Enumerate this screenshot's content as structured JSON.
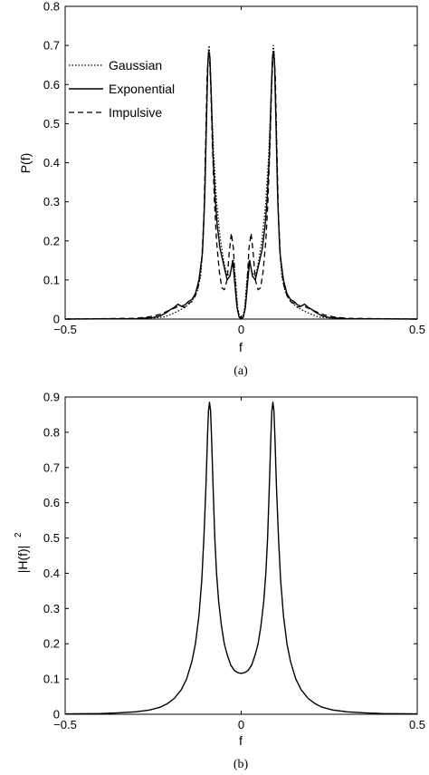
{
  "chart_data": [
    {
      "type": "line",
      "panel_label": "(a)",
      "xlabel": "f",
      "ylabel": "P(f)",
      "xlim": [
        -0.5,
        0.5
      ],
      "ylim": [
        0,
        0.8
      ],
      "xticks": [
        "-0.5",
        "0",
        "0.5"
      ],
      "xtick_values": [
        -0.5,
        0,
        0.5
      ],
      "yticks": [
        "0",
        "0.1",
        "0.2",
        "0.3",
        "0.4",
        "0.5",
        "0.6",
        "0.7",
        "0.8"
      ],
      "ytick_values": [
        0,
        0.1,
        0.2,
        0.3,
        0.4,
        0.5,
        0.6,
        0.7,
        0.8
      ],
      "legend_position": "top-left",
      "series": [
        {
          "name": "Gaussian",
          "style": "dotted",
          "points": [
            [
              -0.5,
              0
            ],
            [
              -0.3,
              0.001
            ],
            [
              -0.25,
              0.003
            ],
            [
              -0.22,
              0.005
            ],
            [
              -0.2,
              0.012
            ],
            [
              -0.18,
              0.02
            ],
            [
              -0.16,
              0.03
            ],
            [
              -0.14,
              0.045
            ],
            [
              -0.125,
              0.07
            ],
            [
              -0.115,
              0.11
            ],
            [
              -0.108,
              0.2
            ],
            [
              -0.102,
              0.35
            ],
            [
              -0.097,
              0.55
            ],
            [
              -0.094,
              0.68
            ],
            [
              -0.091,
              0.7
            ],
            [
              -0.088,
              0.66
            ],
            [
              -0.084,
              0.55
            ],
            [
              -0.078,
              0.42
            ],
            [
              -0.07,
              0.3
            ],
            [
              -0.06,
              0.21
            ],
            [
              -0.05,
              0.15
            ],
            [
              -0.04,
              0.11
            ],
            [
              -0.03,
              0.12
            ],
            [
              -0.022,
              0.15
            ],
            [
              -0.016,
              0.1
            ],
            [
              -0.01,
              0.03
            ],
            [
              -0.004,
              0.005
            ],
            [
              0,
              0.0
            ],
            [
              0.004,
              0.005
            ],
            [
              0.01,
              0.03
            ],
            [
              0.016,
              0.1
            ],
            [
              0.022,
              0.15
            ],
            [
              0.03,
              0.12
            ],
            [
              0.04,
              0.11
            ],
            [
              0.05,
              0.15
            ],
            [
              0.06,
              0.21
            ],
            [
              0.07,
              0.3
            ],
            [
              0.078,
              0.42
            ],
            [
              0.084,
              0.55
            ],
            [
              0.088,
              0.66
            ],
            [
              0.091,
              0.7
            ],
            [
              0.094,
              0.68
            ],
            [
              0.097,
              0.55
            ],
            [
              0.102,
              0.35
            ],
            [
              0.108,
              0.2
            ],
            [
              0.115,
              0.11
            ],
            [
              0.125,
              0.07
            ],
            [
              0.14,
              0.045
            ],
            [
              0.16,
              0.03
            ],
            [
              0.18,
              0.02
            ],
            [
              0.2,
              0.012
            ],
            [
              0.22,
              0.005
            ],
            [
              0.25,
              0.003
            ],
            [
              0.3,
              0.001
            ],
            [
              0.5,
              0
            ]
          ]
        },
        {
          "name": "Exponential",
          "style": "solid",
          "points": [
            [
              -0.5,
              0
            ],
            [
              -0.3,
              0.001
            ],
            [
              -0.25,
              0.004
            ],
            [
              -0.23,
              0.008
            ],
            [
              -0.21,
              0.018
            ],
            [
              -0.2,
              0.025
            ],
            [
              -0.19,
              0.03
            ],
            [
              -0.18,
              0.038
            ],
            [
              -0.17,
              0.033
            ],
            [
              -0.16,
              0.036
            ],
            [
              -0.15,
              0.045
            ],
            [
              -0.14,
              0.05
            ],
            [
              -0.13,
              0.065
            ],
            [
              -0.12,
              0.1
            ],
            [
              -0.11,
              0.17
            ],
            [
              -0.104,
              0.3
            ],
            [
              -0.099,
              0.5
            ],
            [
              -0.095,
              0.65
            ],
            [
              -0.092,
              0.685
            ],
            [
              -0.089,
              0.67
            ],
            [
              -0.085,
              0.57
            ],
            [
              -0.08,
              0.42
            ],
            [
              -0.074,
              0.31
            ],
            [
              -0.068,
              0.24
            ],
            [
              -0.06,
              0.18
            ],
            [
              -0.05,
              0.14
            ],
            [
              -0.04,
              0.1
            ],
            [
              -0.032,
              0.11
            ],
            [
              -0.024,
              0.15
            ],
            [
              -0.018,
              0.09
            ],
            [
              -0.012,
              0.03
            ],
            [
              -0.006,
              0.005
            ],
            [
              0,
              0.0
            ],
            [
              0.006,
              0.005
            ],
            [
              0.012,
              0.03
            ],
            [
              0.018,
              0.09
            ],
            [
              0.024,
              0.15
            ],
            [
              0.032,
              0.11
            ],
            [
              0.04,
              0.1
            ],
            [
              0.05,
              0.14
            ],
            [
              0.06,
              0.18
            ],
            [
              0.068,
              0.24
            ],
            [
              0.074,
              0.31
            ],
            [
              0.08,
              0.42
            ],
            [
              0.085,
              0.57
            ],
            [
              0.089,
              0.67
            ],
            [
              0.092,
              0.685
            ],
            [
              0.095,
              0.65
            ],
            [
              0.099,
              0.5
            ],
            [
              0.104,
              0.3
            ],
            [
              0.11,
              0.17
            ],
            [
              0.12,
              0.1
            ],
            [
              0.13,
              0.065
            ],
            [
              0.14,
              0.05
            ],
            [
              0.15,
              0.045
            ],
            [
              0.16,
              0.036
            ],
            [
              0.17,
              0.033
            ],
            [
              0.18,
              0.038
            ],
            [
              0.19,
              0.03
            ],
            [
              0.2,
              0.025
            ],
            [
              0.21,
              0.018
            ],
            [
              0.23,
              0.008
            ],
            [
              0.25,
              0.004
            ],
            [
              0.3,
              0.001
            ],
            [
              0.5,
              0
            ]
          ]
        },
        {
          "name": "Impulsive",
          "style": "dashed",
          "points": [
            [
              -0.5,
              0
            ],
            [
              -0.3,
              0.002
            ],
            [
              -0.26,
              0.006
            ],
            [
              -0.23,
              0.012
            ],
            [
              -0.21,
              0.02
            ],
            [
              -0.19,
              0.028
            ],
            [
              -0.175,
              0.034
            ],
            [
              -0.16,
              0.03
            ],
            [
              -0.15,
              0.04
            ],
            [
              -0.14,
              0.045
            ],
            [
              -0.13,
              0.06
            ],
            [
              -0.12,
              0.09
            ],
            [
              -0.112,
              0.15
            ],
            [
              -0.106,
              0.26
            ],
            [
              -0.101,
              0.45
            ],
            [
              -0.097,
              0.62
            ],
            [
              -0.093,
              0.68
            ],
            [
              -0.09,
              0.67
            ],
            [
              -0.086,
              0.58
            ],
            [
              -0.082,
              0.45
            ],
            [
              -0.076,
              0.3
            ],
            [
              -0.07,
              0.2
            ],
            [
              -0.062,
              0.12
            ],
            [
              -0.055,
              0.08
            ],
            [
              -0.048,
              0.075
            ],
            [
              -0.04,
              0.1
            ],
            [
              -0.034,
              0.17
            ],
            [
              -0.028,
              0.22
            ],
            [
              -0.022,
              0.18
            ],
            [
              -0.016,
              0.08
            ],
            [
              -0.01,
              0.02
            ],
            [
              0,
              0.0
            ],
            [
              0.01,
              0.02
            ],
            [
              0.016,
              0.08
            ],
            [
              0.022,
              0.18
            ],
            [
              0.028,
              0.22
            ],
            [
              0.034,
              0.17
            ],
            [
              0.04,
              0.1
            ],
            [
              0.048,
              0.075
            ],
            [
              0.055,
              0.08
            ],
            [
              0.062,
              0.12
            ],
            [
              0.07,
              0.2
            ],
            [
              0.076,
              0.3
            ],
            [
              0.082,
              0.45
            ],
            [
              0.086,
              0.58
            ],
            [
              0.09,
              0.67
            ],
            [
              0.093,
              0.68
            ],
            [
              0.097,
              0.62
            ],
            [
              0.101,
              0.45
            ],
            [
              0.106,
              0.26
            ],
            [
              0.112,
              0.15
            ],
            [
              0.12,
              0.09
            ],
            [
              0.13,
              0.06
            ],
            [
              0.14,
              0.045
            ],
            [
              0.15,
              0.04
            ],
            [
              0.16,
              0.03
            ],
            [
              0.175,
              0.034
            ],
            [
              0.19,
              0.028
            ],
            [
              0.21,
              0.02
            ],
            [
              0.23,
              0.012
            ],
            [
              0.26,
              0.006
            ],
            [
              0.3,
              0.002
            ],
            [
              0.5,
              0
            ]
          ]
        }
      ]
    },
    {
      "type": "line",
      "panel_label": "(b)",
      "xlabel": "f",
      "ylabel": "|H(f)|",
      "ylabel_superscript": "2",
      "xlim": [
        -0.5,
        0.5
      ],
      "ylim": [
        0,
        0.9
      ],
      "xticks": [
        "-0.5",
        "0",
        "0.5"
      ],
      "xtick_values": [
        -0.5,
        0,
        0.5
      ],
      "yticks": [
        "0",
        "0.1",
        "0.2",
        "0.3",
        "0.4",
        "0.5",
        "0.6",
        "0.7",
        "0.8",
        "0.9"
      ],
      "ytick_values": [
        0,
        0.1,
        0.2,
        0.3,
        0.4,
        0.5,
        0.6,
        0.7,
        0.8,
        0.9
      ],
      "series": [
        {
          "style": "solid",
          "points": [
            [
              -0.5,
              0.001
            ],
            [
              -0.4,
              0.002
            ],
            [
              -0.35,
              0.004
            ],
            [
              -0.3,
              0.007
            ],
            [
              -0.26,
              0.012
            ],
            [
              -0.23,
              0.02
            ],
            [
              -0.21,
              0.03
            ],
            [
              -0.19,
              0.045
            ],
            [
              -0.17,
              0.07
            ],
            [
              -0.155,
              0.1
            ],
            [
              -0.14,
              0.15
            ],
            [
              -0.13,
              0.2
            ],
            [
              -0.12,
              0.28
            ],
            [
              -0.112,
              0.38
            ],
            [
              -0.106,
              0.5
            ],
            [
              -0.1,
              0.65
            ],
            [
              -0.096,
              0.78
            ],
            [
              -0.093,
              0.86
            ],
            [
              -0.09,
              0.885
            ],
            [
              -0.087,
              0.86
            ],
            [
              -0.084,
              0.78
            ],
            [
              -0.08,
              0.65
            ],
            [
              -0.075,
              0.5
            ],
            [
              -0.07,
              0.4
            ],
            [
              -0.064,
              0.32
            ],
            [
              -0.056,
              0.25
            ],
            [
              -0.048,
              0.2
            ],
            [
              -0.04,
              0.17
            ],
            [
              -0.03,
              0.14
            ],
            [
              -0.02,
              0.125
            ],
            [
              -0.01,
              0.118
            ],
            [
              0,
              0.116
            ],
            [
              0.01,
              0.118
            ],
            [
              0.02,
              0.125
            ],
            [
              0.03,
              0.14
            ],
            [
              0.04,
              0.17
            ],
            [
              0.048,
              0.2
            ],
            [
              0.056,
              0.25
            ],
            [
              0.064,
              0.32
            ],
            [
              0.07,
              0.4
            ],
            [
              0.075,
              0.5
            ],
            [
              0.08,
              0.65
            ],
            [
              0.084,
              0.78
            ],
            [
              0.087,
              0.86
            ],
            [
              0.09,
              0.885
            ],
            [
              0.093,
              0.86
            ],
            [
              0.096,
              0.78
            ],
            [
              0.1,
              0.65
            ],
            [
              0.106,
              0.5
            ],
            [
              0.112,
              0.38
            ],
            [
              0.12,
              0.28
            ],
            [
              0.13,
              0.2
            ],
            [
              0.14,
              0.15
            ],
            [
              0.155,
              0.1
            ],
            [
              0.17,
              0.07
            ],
            [
              0.19,
              0.045
            ],
            [
              0.21,
              0.03
            ],
            [
              0.23,
              0.02
            ],
            [
              0.26,
              0.012
            ],
            [
              0.3,
              0.007
            ],
            [
              0.35,
              0.004
            ],
            [
              0.4,
              0.002
            ],
            [
              0.5,
              0.001
            ]
          ]
        }
      ]
    }
  ]
}
